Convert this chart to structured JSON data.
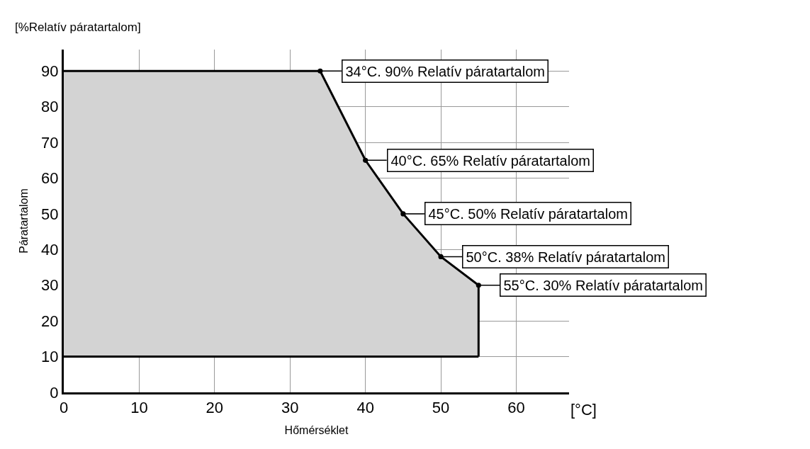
{
  "chart_data": {
    "type": "area",
    "xlabel": "Hőmérséklet",
    "ylabel": "Páratartalom",
    "series": [
      {
        "type": "line",
        "x": [
          0,
          55
        ],
        "values": [
          10,
          10
        ],
        "color": "#000000"
      },
      {
        "x": [
          0,
          34,
          40,
          45,
          50,
          55
        ],
        "values": [
          90,
          90,
          65,
          50,
          38,
          30
        ],
        "color": "#000000"
      }
    ],
    "xlim": [
      0,
      67
    ],
    "ylim": [
      0,
      96
    ],
    "xticks": [
      0,
      10,
      20,
      30,
      40,
      50,
      60
    ],
    "yticks": [
      0,
      10,
      20,
      30,
      40,
      50,
      60,
      70,
      80,
      90
    ],
    "grid": true,
    "annotations": [
      "[%Relatív páratartalom]",
      "[°C]",
      {
        "text": "34°C. 90% Relatív páratartalom",
        "x": 34,
        "y": 90
      },
      {
        "text": "40°C. 65% Relatív páratartalom",
        "x": 40,
        "y": 65
      },
      {
        "text": "45°C. 50% Relatív páratartalom",
        "x": 45,
        "y": 50
      },
      {
        "text": "50°C. 38% Relatív páratartalom",
        "x": 50,
        "y": 38
      },
      {
        "text": "55°C. 30% Relatív páratartalom",
        "x": 55,
        "y": 30
      }
    ]
  }
}
